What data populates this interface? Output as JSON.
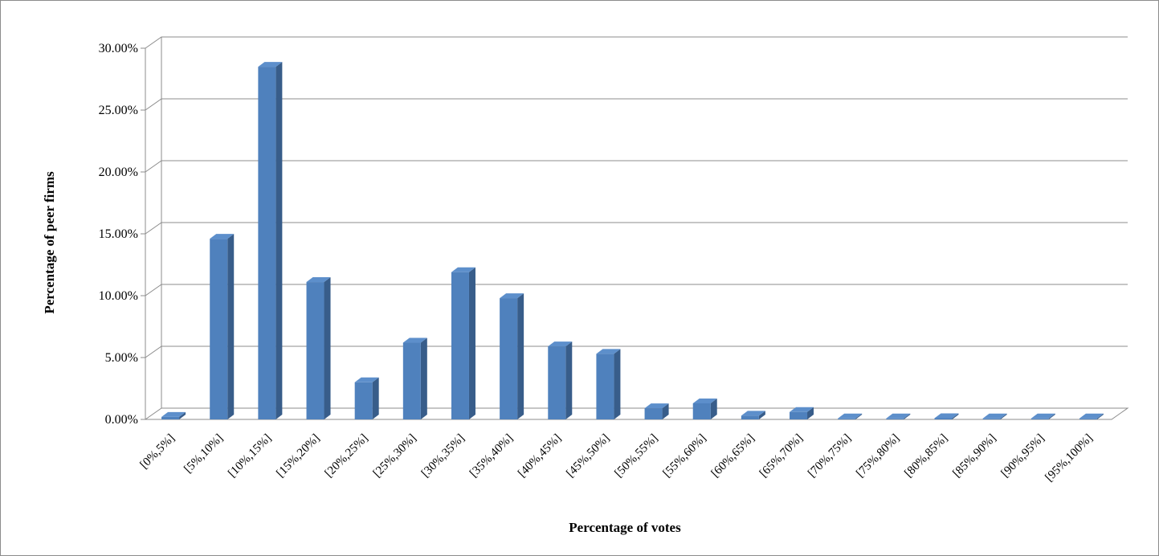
{
  "chart_data": {
    "type": "bar",
    "xlabel": "Percentage of votes",
    "ylabel": "Percentage of peer firms",
    "ylim": [
      0,
      30
    ],
    "yticks": [
      "0.00%",
      "5.00%",
      "10.00%",
      "15.00%",
      "20.00%",
      "25.00%",
      "30.00%"
    ],
    "grid": true,
    "legend": "none",
    "categories": [
      "[0%,5%]",
      "[5%,10%]",
      "[10%,15%]",
      "[15%,20%]",
      "[20%,25%]",
      "[25%,30%]",
      "[30%,35%]",
      "[35%,40%]",
      "[40%,45%]",
      "[45%,50%]",
      "[50%,55%]",
      "[55%,60%]",
      "[60%,65%]",
      "[65%,70%]",
      "[70%,75%]",
      "[75%,80%]",
      "[80%,85%]",
      "[85%,90%]",
      "[90%,95%]",
      "[95%,100%]"
    ],
    "values": [
      0.2,
      14.6,
      28.5,
      11.1,
      3.0,
      6.2,
      11.9,
      9.8,
      5.9,
      5.3,
      0.9,
      1.3,
      0.3,
      0.6,
      0.02,
      0.03,
      0.1,
      0.02,
      0.02,
      0.08
    ],
    "colors": {
      "bar_front": "#4f81bd",
      "bar_side": "#385d8a",
      "bar_top": "#5d8fcb",
      "grid": "#8c8c8c"
    }
  }
}
